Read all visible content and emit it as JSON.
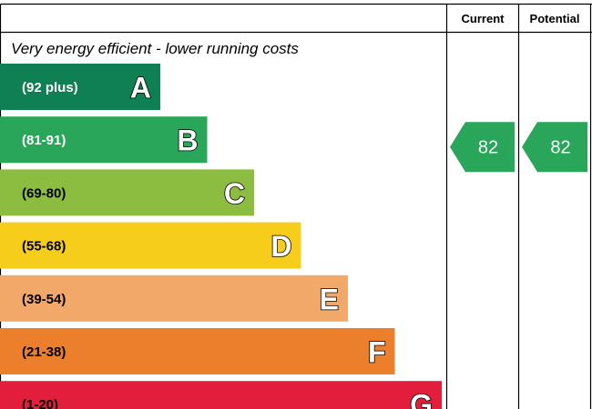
{
  "header": {
    "current_label": "Current",
    "potential_label": "Potential"
  },
  "top_caption": "Very energy efficient - lower running costs",
  "chart_data": {
    "type": "bar",
    "categories": [
      "A",
      "B",
      "C",
      "D",
      "E",
      "F",
      "G"
    ],
    "bands": [
      {
        "letter": "A",
        "range": "(92 plus)",
        "min": 92,
        "max": 100,
        "color": "#0f7f54",
        "text_color": "#ffffff"
      },
      {
        "letter": "B",
        "range": "(81-91)",
        "min": 81,
        "max": 91,
        "color": "#2aa65a",
        "text_color": "#ffffff"
      },
      {
        "letter": "C",
        "range": "(69-80)",
        "min": 69,
        "max": 80,
        "color": "#8dbd40",
        "text_color": "#000000"
      },
      {
        "letter": "D",
        "range": "(55-68)",
        "min": 55,
        "max": 68,
        "color": "#f6cd1a",
        "text_color": "#000000"
      },
      {
        "letter": "E",
        "range": "(39-54)",
        "min": 39,
        "max": 54,
        "color": "#f2a868",
        "text_color": "#000000"
      },
      {
        "letter": "F",
        "range": "(21-38)",
        "min": 21,
        "max": 38,
        "color": "#ec7f2b",
        "text_color": "#000000"
      },
      {
        "letter": "G",
        "range": "(1-20)",
        "min": 1,
        "max": 20,
        "color": "#e31d3c",
        "text_color": "#000000"
      }
    ],
    "current": {
      "value": 82,
      "band": "B",
      "color": "#2aa65a"
    },
    "potential": {
      "value": 82,
      "band": "B",
      "color": "#2aa65a"
    }
  }
}
